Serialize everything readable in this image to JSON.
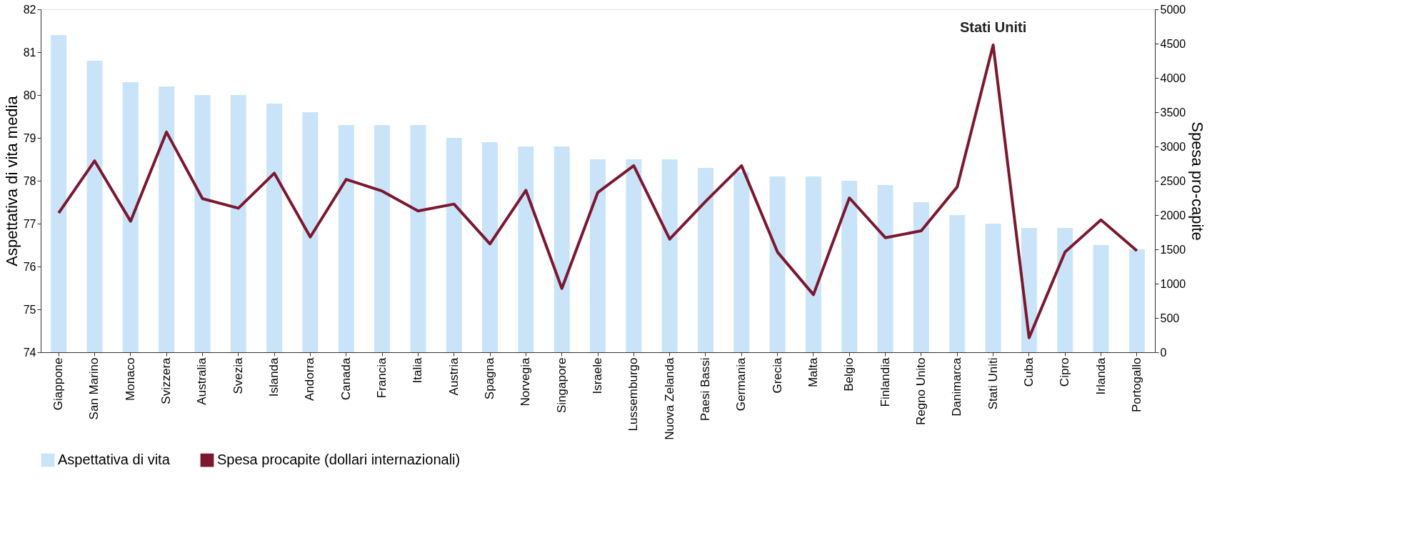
{
  "chart_data": {
    "type": "bar",
    "categories": [
      "Giappone",
      "San Marino",
      "Monaco",
      "Svizzera",
      "Australia",
      "Svezia",
      "Islanda",
      "Andorra",
      "Canada",
      "Francia",
      "Italia",
      "Austria",
      "Spagna",
      "Norvegia",
      "Singapore",
      "Israele",
      "Lussemburgo",
      "Nuova Zelanda",
      "Paesi Bassi",
      "Germania",
      "Grecia",
      "Malta",
      "Belgio",
      "Finlandia",
      "Regno Unito",
      "Danimarca",
      "Stati Uniti",
      "Cuba",
      "Cipro",
      "Irlanda",
      "Portogallo"
    ],
    "series": [
      {
        "name": "Aspettativa di vita",
        "color": "#c9e4f8",
        "values": [
          81.4,
          80.8,
          80.3,
          80.2,
          80.0,
          80.0,
          79.8,
          79.6,
          79.3,
          79.3,
          79.3,
          79.0,
          78.9,
          78.8,
          78.8,
          78.5,
          78.5,
          78.5,
          78.3,
          78.2,
          78.1,
          78.1,
          78.0,
          77.9,
          77.5,
          77.2,
          77.0,
          76.9,
          76.9,
          76.5,
          76.4
        ]
      },
      {
        "name": "Spesa procapite (dollari internazionali)",
        "type": "line",
        "axis": "y2",
        "color": "#7b1830",
        "values": [
          2030,
          2790,
          1910,
          3210,
          2240,
          2100,
          2610,
          1680,
          2520,
          2350,
          2060,
          2160,
          1580,
          2360,
          930,
          2330,
          2720,
          1650,
          2200,
          2720,
          1460,
          840,
          2250,
          1670,
          1770,
          2410,
          4480,
          210,
          1460,
          1930,
          1480
        ]
      }
    ],
    "ylabel": "Aspettativa di vita media",
    "y2label": "Spesa pro-capite",
    "ylim": [
      74,
      82
    ],
    "yticks": [
      74,
      75,
      76,
      77,
      78,
      79,
      80,
      81,
      82
    ],
    "y2lim": [
      0,
      5000
    ],
    "y2ticks": [
      0,
      500,
      1000,
      1500,
      2000,
      2500,
      3000,
      3500,
      4000,
      4500,
      5000
    ],
    "annotations": [
      "Stati Uniti"
    ],
    "grid": false,
    "legend": "bottom",
    "line_style": "solid"
  }
}
